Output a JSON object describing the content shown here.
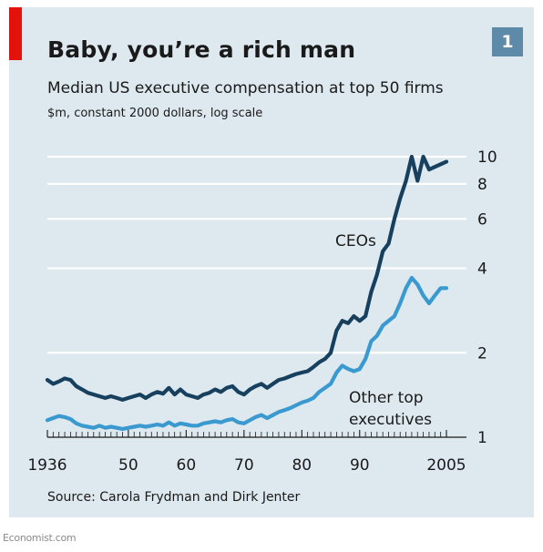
{
  "header": {
    "title": "Baby, you’re a rich man",
    "subtitle": "Median US executive compensation at top 50 firms",
    "units": "$m, constant 2000 dollars, log scale",
    "badge": "1"
  },
  "footer": {
    "source": "Source: Carola Frydman and Dirk Jenter",
    "credit": "Economist.com"
  },
  "colors": {
    "background": "#dde8ef",
    "ceo_line": "#17405e",
    "exec_line": "#3a9ad0",
    "accent_red": "#e3120b",
    "badge": "#5d8aa8"
  },
  "chart_data": {
    "type": "line",
    "title": "Baby, you’re a rich man",
    "subtitle": "Median US executive compensation at top 50 firms",
    "ylabel": "$m, constant 2000 dollars, log scale",
    "y_scale": "log",
    "xlim": [
      1936,
      2005
    ],
    "ylim": [
      1,
      10
    ],
    "x_tick_labels": [
      "1936",
      "50",
      "60",
      "70",
      "80",
      "90",
      "2005"
    ],
    "x_tick_values": [
      1936,
      1950,
      1960,
      1970,
      1980,
      1990,
      2005
    ],
    "y_ticks": [
      1,
      2,
      4,
      6,
      8,
      10
    ],
    "grid": true,
    "series": [
      {
        "name": "CEOs",
        "color": "#17405e",
        "x": [
          1936,
          1937,
          1938,
          1939,
          1940,
          1941,
          1942,
          1943,
          1944,
          1945,
          1946,
          1947,
          1948,
          1949,
          1950,
          1951,
          1952,
          1953,
          1954,
          1955,
          1956,
          1957,
          1958,
          1959,
          1960,
          1961,
          1962,
          1963,
          1964,
          1965,
          1966,
          1967,
          1968,
          1969,
          1970,
          1971,
          1972,
          1973,
          1974,
          1975,
          1976,
          1977,
          1978,
          1979,
          1980,
          1981,
          1982,
          1983,
          1984,
          1985,
          1986,
          1987,
          1988,
          1989,
          1990,
          1991,
          1992,
          1993,
          1994,
          1995,
          1996,
          1997,
          1998,
          1999,
          2000,
          2001,
          2002,
          2003,
          2004,
          2005
        ],
        "values": [
          1.6,
          1.55,
          1.58,
          1.62,
          1.6,
          1.52,
          1.48,
          1.44,
          1.42,
          1.4,
          1.38,
          1.4,
          1.38,
          1.36,
          1.38,
          1.4,
          1.42,
          1.38,
          1.42,
          1.45,
          1.43,
          1.5,
          1.42,
          1.48,
          1.42,
          1.4,
          1.38,
          1.42,
          1.44,
          1.48,
          1.45,
          1.5,
          1.52,
          1.45,
          1.42,
          1.48,
          1.52,
          1.55,
          1.5,
          1.55,
          1.6,
          1.62,
          1.65,
          1.68,
          1.7,
          1.72,
          1.78,
          1.85,
          1.9,
          2.0,
          2.4,
          2.6,
          2.55,
          2.7,
          2.6,
          2.7,
          3.3,
          3.8,
          4.6,
          4.9,
          6.0,
          7.1,
          8.2,
          10.0,
          8.2,
          10.0,
          9.0,
          9.2,
          9.4,
          9.6
        ]
      },
      {
        "name": "Other top executives",
        "color": "#3a9ad0",
        "x": [
          1936,
          1937,
          1938,
          1939,
          1940,
          1941,
          1942,
          1943,
          1944,
          1945,
          1946,
          1947,
          1948,
          1949,
          1950,
          1951,
          1952,
          1953,
          1954,
          1955,
          1956,
          1957,
          1958,
          1959,
          1960,
          1961,
          1962,
          1963,
          1964,
          1965,
          1966,
          1967,
          1968,
          1969,
          1970,
          1971,
          1972,
          1973,
          1974,
          1975,
          1976,
          1977,
          1978,
          1979,
          1980,
          1981,
          1982,
          1983,
          1984,
          1985,
          1986,
          1987,
          1988,
          1989,
          1990,
          1991,
          1992,
          1993,
          1994,
          1995,
          1996,
          1997,
          1998,
          1999,
          2000,
          2001,
          2002,
          2003,
          2004,
          2005
        ],
        "values": [
          1.15,
          1.17,
          1.19,
          1.18,
          1.16,
          1.12,
          1.1,
          1.09,
          1.08,
          1.1,
          1.08,
          1.09,
          1.08,
          1.07,
          1.08,
          1.09,
          1.1,
          1.09,
          1.1,
          1.11,
          1.1,
          1.13,
          1.1,
          1.12,
          1.11,
          1.1,
          1.1,
          1.12,
          1.13,
          1.14,
          1.13,
          1.15,
          1.16,
          1.13,
          1.12,
          1.15,
          1.18,
          1.2,
          1.17,
          1.2,
          1.23,
          1.25,
          1.27,
          1.3,
          1.33,
          1.35,
          1.38,
          1.45,
          1.5,
          1.55,
          1.7,
          1.8,
          1.75,
          1.72,
          1.75,
          1.9,
          2.2,
          2.3,
          2.5,
          2.6,
          2.7,
          3.0,
          3.4,
          3.7,
          3.5,
          3.2,
          3.0,
          3.2,
          3.4,
          3.4
        ]
      }
    ],
    "annotations": [
      {
        "text": "CEOs",
        "series": "CEOs"
      },
      {
        "text": "Other top executives",
        "lines": [
          "Other top",
          "executives"
        ],
        "series": "Other top executives"
      }
    ]
  }
}
